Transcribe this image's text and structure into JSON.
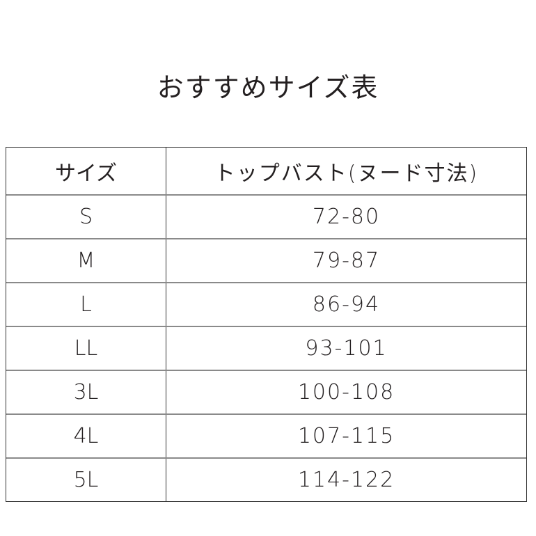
{
  "title": "おすすめサイズ表",
  "table": {
    "headers": [
      "サイズ",
      "トップバスト(ヌード寸法)"
    ],
    "rows": [
      {
        "size": "S",
        "bust": "72-80"
      },
      {
        "size": "M",
        "bust": "79-87"
      },
      {
        "size": "L",
        "bust": "86-94"
      },
      {
        "size": "LL",
        "bust": "93-101"
      },
      {
        "size": "3L",
        "bust": "100-108"
      },
      {
        "size": "4L",
        "bust": "107-115"
      },
      {
        "size": "5L",
        "bust": "114-122"
      }
    ]
  }
}
